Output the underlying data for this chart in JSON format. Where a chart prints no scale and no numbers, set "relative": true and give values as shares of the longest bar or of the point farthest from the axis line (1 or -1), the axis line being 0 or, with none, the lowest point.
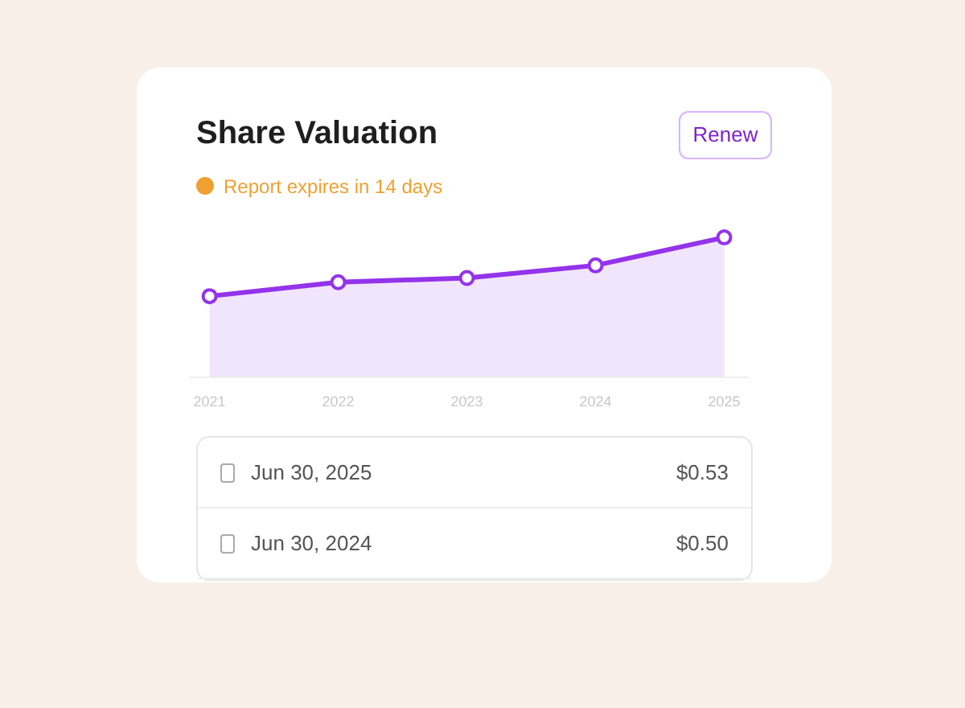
{
  "chart_data": {
    "type": "area",
    "title": "Share Valuation",
    "subtitle": "Report expires in 14 days",
    "categories": [
      "2021",
      "2022",
      "2023",
      "2024",
      "2025"
    ],
    "series": [
      {
        "color": "#9333ea",
        "values": [
          0.58,
          0.68,
          0.71,
          0.8,
          1
        ]
      }
    ],
    "relative": true,
    "marker": "circle",
    "grid": false,
    "annotations": [
      "Renew",
      "Jun 30, 2025",
      "$0.53",
      "Jun 30, 2024",
      "$0.50"
    ]
  }
}
